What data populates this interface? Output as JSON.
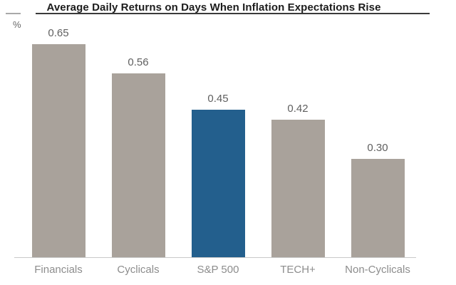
{
  "title": "Average Daily Returns on Days When Inflation Expectations Rise",
  "chart_data": {
    "type": "bar",
    "title": "Average Daily Returns on Days When Inflation Expectations Rise",
    "ylabel": "%",
    "xlabel": "",
    "categories": [
      "Financials",
      "Cyclicals",
      "S&P 500",
      "TECH+",
      "Non-Cyclicals"
    ],
    "values": [
      0.65,
      0.56,
      0.45,
      0.42,
      0.3
    ],
    "value_labels": [
      "0.65",
      "0.56",
      "0.45",
      "0.42",
      "0.30"
    ],
    "highlight_index": 2,
    "highlight_category": "S&P 500",
    "ylim": [
      0,
      0.73
    ],
    "grid": "off",
    "legend": "none",
    "data_labels": "above-bars",
    "colors": {
      "bar_default": "#a9a29b",
      "bar_highlight": "#235f8d",
      "axis_line": "#c9c9c9",
      "title_text": "#1c1c1c",
      "title_rule": "#3a3a3a",
      "value_label": "#5f5f5f",
      "category_label": "#8d8d8d",
      "unit_label": "#666666",
      "background": "#ffffff"
    }
  }
}
